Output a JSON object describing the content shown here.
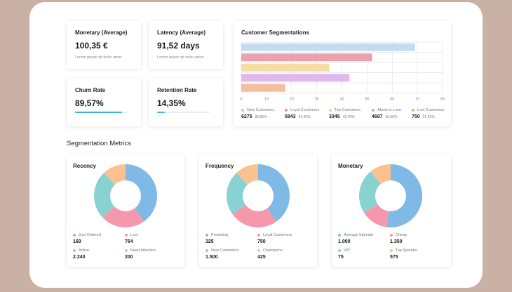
{
  "kpis": {
    "monetary": {
      "title": "Monetary (Average)",
      "value": "100,35 €",
      "subtitle": "Lorem ipsum sit dolor amet"
    },
    "latency": {
      "title": "Latency (Average)",
      "value": "91,52 days",
      "subtitle": "Lorem ipsum sit dolor amet"
    },
    "churn": {
      "title": "Churn Rate",
      "value": "89,57%",
      "progress": 0.8957
    },
    "retention": {
      "title": "Retention Rate",
      "value": "14,35%",
      "progress": 0.1435
    }
  },
  "segmentations": {
    "title": "Customer Segmentations",
    "chart_data": {
      "type": "bar",
      "orientation": "horizontal",
      "categories": [
        "New Customers",
        "Loyal Customers",
        "Top Customers",
        "About to Lose",
        "Lost Customers"
      ],
      "values": [
        69,
        52,
        35,
        43,
        17.5
      ],
      "colors": [
        "#c5dcf0",
        "#eba1ae",
        "#f7dca3",
        "#e1b8ec",
        "#f3c09c"
      ],
      "xlim": [
        0,
        80
      ],
      "ticks": [
        "0",
        "10",
        "20",
        "30",
        "40",
        "50",
        "60",
        "70",
        "80"
      ],
      "grid": true
    },
    "legend": [
      {
        "label": "New Customers",
        "value": "6275",
        "pct": "85,65%",
        "color": "#a9cdec"
      },
      {
        "label": "Loyal Customers",
        "value": "5843",
        "pct": "61,43%",
        "color": "#eb8f9f"
      },
      {
        "label": "Top Customers",
        "value": "3345",
        "pct": "42,76%",
        "color": "#f6cf85"
      },
      {
        "label": "About to Lose",
        "value": "4697",
        "pct": "50,65%",
        "color": "#d89fe6"
      },
      {
        "label": "Lost Customers",
        "value": "750",
        "pct": "21,61%",
        "color": "#f2b184"
      }
    ]
  },
  "section_title": "Segmentation Metrics",
  "donuts": [
    {
      "title": "Recency",
      "chart_data": {
        "type": "pie",
        "donut": true,
        "segments": [
          {
            "label": "Just Ordered",
            "value": 169,
            "display": "169",
            "color": "#7fb9e6"
          },
          {
            "label": "Lost",
            "value": 764,
            "display": "764",
            "color": "#f598ab"
          },
          {
            "label": "Active",
            "value": 2240,
            "display": "2.240",
            "color": "#88d3d1"
          },
          {
            "label": "Need Attention",
            "value": 200,
            "display": "200",
            "color": "#fbc190"
          }
        ],
        "slices_pct": [
          40,
          23,
          25,
          12
        ]
      }
    },
    {
      "title": "Frequency",
      "chart_data": {
        "type": "pie",
        "donut": true,
        "segments": [
          {
            "label": "Promising",
            "value": 325,
            "display": "325",
            "color": "#7fb9e6"
          },
          {
            "label": "Loyal Customers",
            "value": 750,
            "display": "750",
            "color": "#f598ab"
          },
          {
            "label": "New Customers",
            "value": 1500,
            "display": "1.500",
            "color": "#88d3d1"
          },
          {
            "label": "Champions",
            "value": 425,
            "display": "425",
            "color": "#fbc190"
          }
        ],
        "slices_pct": [
          40,
          25,
          23,
          12
        ]
      }
    },
    {
      "title": "Monetary",
      "chart_data": {
        "type": "pie",
        "donut": true,
        "segments": [
          {
            "label": "Average Spender",
            "value": 1000,
            "display": "1.000",
            "color": "#7fb9e6"
          },
          {
            "label": "Cheap",
            "value": 1350,
            "display": "1.350",
            "color": "#f598ab"
          },
          {
            "label": "VIP",
            "value": 75,
            "display": "75",
            "color": "#88d3d1"
          },
          {
            "label": "Top Spender",
            "value": 575,
            "display": "575",
            "color": "#fbc190"
          }
        ],
        "slices_pct": [
          52,
          14,
          23,
          11
        ]
      }
    }
  ]
}
